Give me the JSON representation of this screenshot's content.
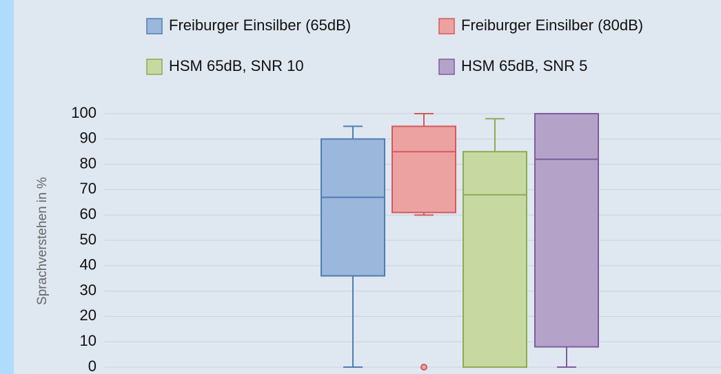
{
  "chart_data": {
    "type": "box",
    "ylabel": "Sprachverstehen in %",
    "ylim": [
      0,
      100
    ],
    "yticks": [
      0,
      10,
      20,
      30,
      40,
      50,
      60,
      70,
      80,
      90,
      100
    ],
    "grid": true,
    "series": [
      {
        "name": "Freiburger Einsilber (65dB)",
        "color": "#9bb7dc",
        "edge": "#4f7cb3",
        "values": {
          "min": 0,
          "q1": 36,
          "median": 67,
          "q3": 90,
          "max": 95
        },
        "outliers": []
      },
      {
        "name": "Freiburger Einsilber (80dB)",
        "color": "#eda2a2",
        "edge": "#d25a5a",
        "values": {
          "min": 60,
          "q1": 61,
          "median": 85,
          "q3": 95,
          "max": 100
        },
        "outliers": [
          0
        ]
      },
      {
        "name": "HSM 65dB, SNR 10",
        "color": "#c7d9a1",
        "edge": "#8dab52",
        "values": {
          "min": 0,
          "q1": 0,
          "median": 68,
          "q3": 85,
          "max": 98
        },
        "outliers": []
      },
      {
        "name": "HSM 65dB, SNR 5",
        "color": "#b5a2c9",
        "edge": "#7d5d9c",
        "values": {
          "min": 0,
          "q1": 8,
          "median": 82,
          "q3": 100,
          "max": 100
        },
        "outliers": []
      }
    ]
  }
}
